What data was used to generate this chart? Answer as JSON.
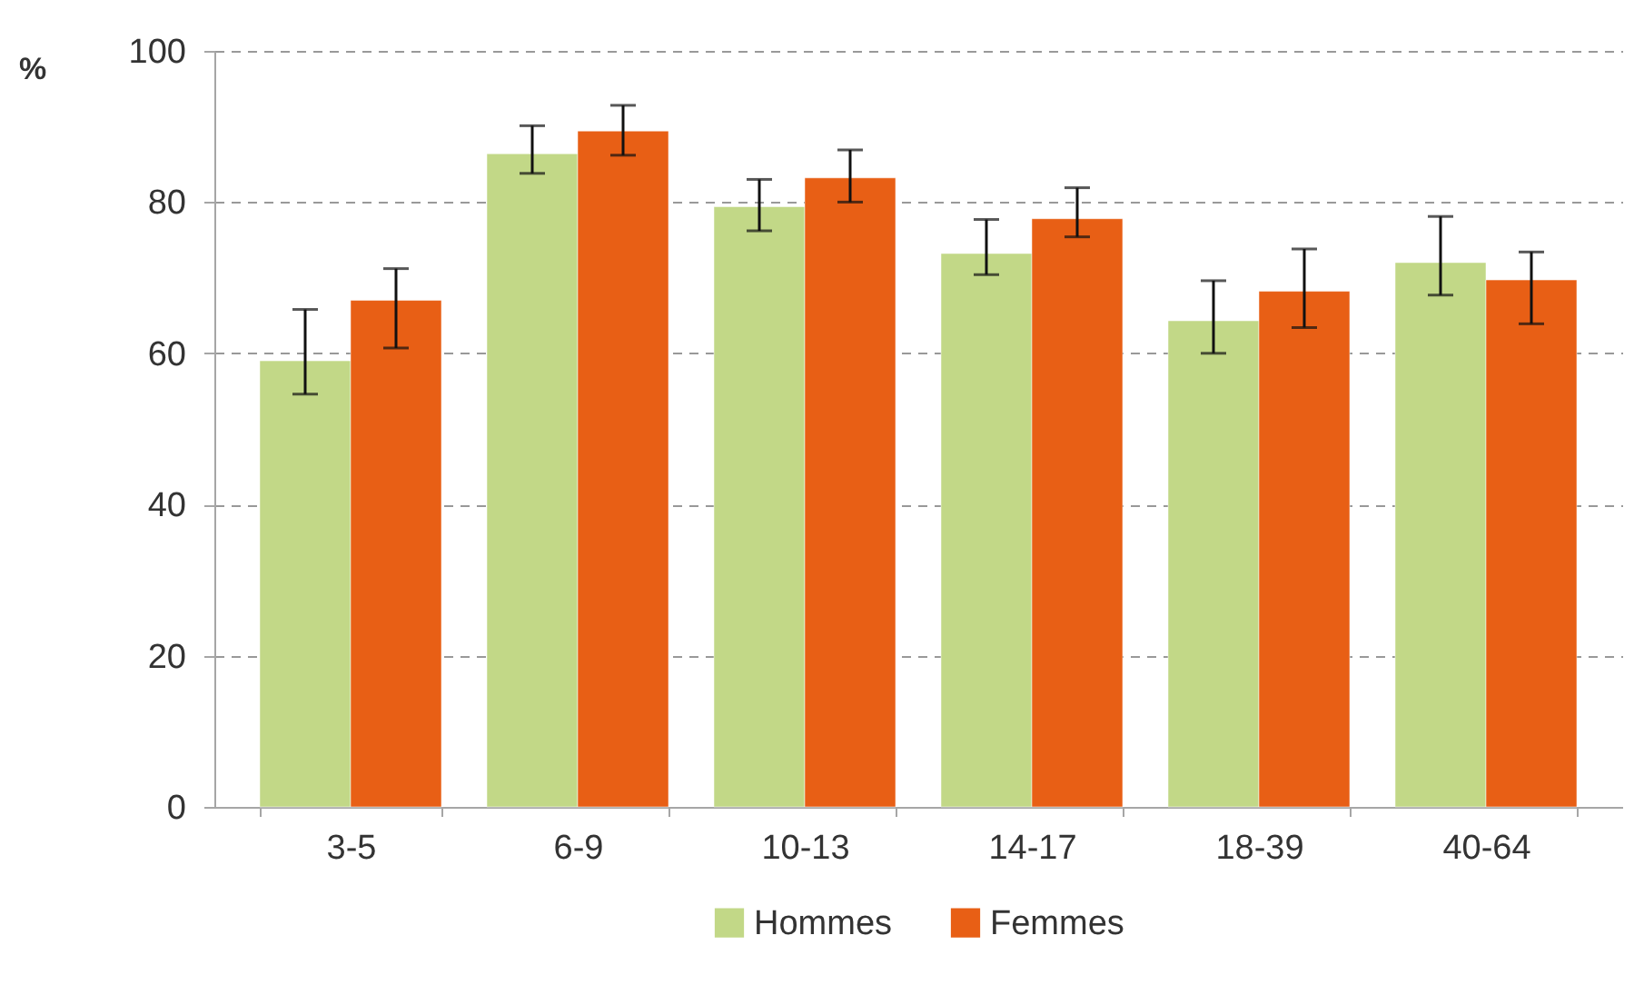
{
  "chart_data": {
    "type": "bar",
    "ylabel": "%",
    "categories": [
      "3-5",
      "6-9",
      "10-13",
      "14-17",
      "18-39",
      "40-64"
    ],
    "series": [
      {
        "name": "Hommes",
        "color": "#c2d887",
        "values": [
          59.0,
          86.4,
          79.4,
          73.2,
          64.3,
          72.0
        ],
        "errors": [
          [
            54.6,
            65.8
          ],
          [
            83.8,
            90.1
          ],
          [
            76.2,
            83.0
          ],
          [
            70.4,
            77.7
          ],
          [
            60.0,
            69.6
          ],
          [
            67.7,
            78.1
          ]
        ]
      },
      {
        "name": "Femmes",
        "color": "#e85f15",
        "values": [
          67.0,
          89.4,
          83.2,
          77.8,
          68.2,
          69.7
        ],
        "errors": [
          [
            60.7,
            71.2
          ],
          [
            86.2,
            92.8
          ],
          [
            80.0,
            86.9
          ],
          [
            75.4,
            81.9
          ],
          [
            63.4,
            73.8
          ],
          [
            63.9,
            73.4
          ]
        ]
      }
    ],
    "ylim": [
      0,
      100
    ],
    "yticks": [
      0,
      20,
      40,
      60,
      80,
      100
    ],
    "grid": "y",
    "legend": "bottom"
  }
}
